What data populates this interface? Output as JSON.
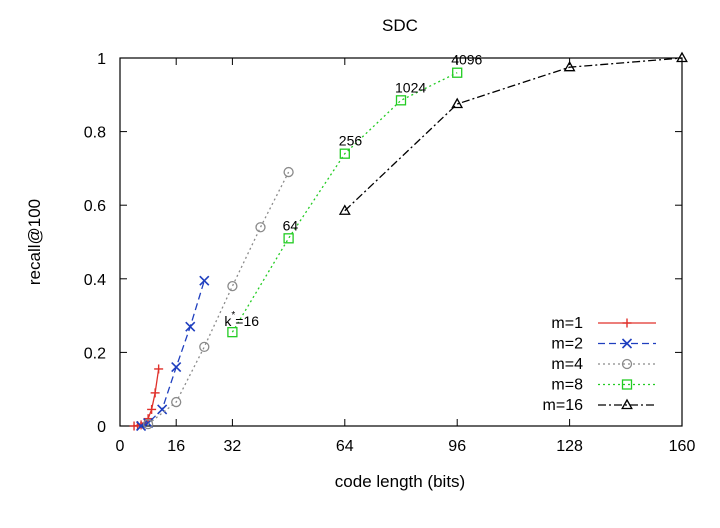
{
  "chart_data": {
    "type": "line",
    "title": "SDC",
    "xlabel": "code length (bits)",
    "ylabel": "recall@100",
    "xlim": [
      0,
      160
    ],
    "ylim": [
      0,
      1
    ],
    "xticks": [
      0,
      16,
      32,
      64,
      96,
      128,
      160
    ],
    "yticks": [
      0,
      0.2,
      0.4,
      0.6,
      0.8,
      1
    ],
    "grid": false,
    "legend_position": "bottom-right",
    "series": [
      {
        "name": "m=1",
        "color": "#e0302a",
        "marker": "plus",
        "dash": "solid",
        "x": [
          4,
          5,
          6,
          7,
          8,
          9,
          10,
          11
        ],
        "y": [
          0.0,
          0.001,
          0.003,
          0.008,
          0.02,
          0.045,
          0.09,
          0.155
        ]
      },
      {
        "name": "m=2",
        "color": "#1f3fbf",
        "marker": "x",
        "dash": "dashed",
        "x": [
          6,
          8,
          12,
          16,
          20,
          24
        ],
        "y": [
          0.0,
          0.008,
          0.045,
          0.16,
          0.27,
          0.395
        ]
      },
      {
        "name": "m=4",
        "color": "#8a8a8a",
        "marker": "circle",
        "dash": "dotted",
        "x": [
          8,
          16,
          24,
          32,
          40,
          48
        ],
        "y": [
          0.005,
          0.065,
          0.215,
          0.38,
          0.54,
          0.69
        ]
      },
      {
        "name": "m=8",
        "color": "#22cc22",
        "marker": "square",
        "dash": "dotted",
        "x": [
          32,
          48,
          64,
          80,
          96
        ],
        "y": [
          0.255,
          0.51,
          0.74,
          0.885,
          0.96
        ]
      },
      {
        "name": "m=16",
        "color": "#000000",
        "marker": "triangle",
        "dash": "dashdot",
        "x": [
          64,
          96,
          128,
          160
        ],
        "y": [
          0.585,
          0.875,
          0.975,
          1.0
        ]
      }
    ],
    "annotations": [
      {
        "x": 32,
        "y": 0.255,
        "base": "k",
        "sup": "*",
        "rest": "=16"
      },
      {
        "x": 48,
        "y": 0.51,
        "text": "64"
      },
      {
        "x": 64,
        "y": 0.74,
        "text": "256"
      },
      {
        "x": 80,
        "y": 0.885,
        "text": "1024"
      },
      {
        "x": 96,
        "y": 0.96,
        "text": "4096"
      }
    ]
  }
}
